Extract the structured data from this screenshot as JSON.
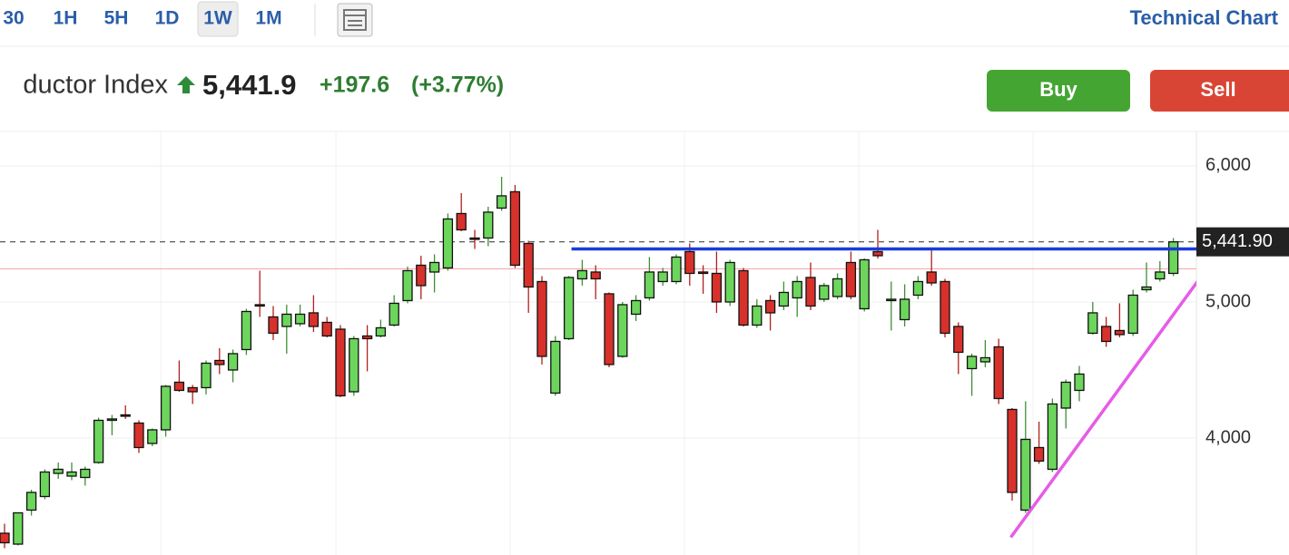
{
  "toolbar": {
    "intervals": [
      "30",
      "1H",
      "5H",
      "1D",
      "1W",
      "1M"
    ],
    "selected": 4,
    "link": "Technical Chart"
  },
  "quote": {
    "name": "ductor Index",
    "price": "5,441.9",
    "change": "+197.6",
    "change_pct": "(+3.77%)"
  },
  "actions": [
    "Buy",
    "Sell"
  ],
  "chart_data": {
    "type": "candlestick",
    "open": [
      3300,
      3220,
      3470,
      3570,
      3740,
      3720,
      3710,
      3820,
      4130,
      4170,
      4110,
      3960,
      4060,
      4410,
      4370,
      4370,
      4570,
      4500,
      4650,
      4980,
      4890,
      4820,
      4840,
      4920,
      4850,
      4800,
      4340,
      4750,
      4750,
      4830,
      5010,
      5270,
      5220,
      5250,
      5650,
      5470,
      5470,
      5690,
      5810,
      5430,
      5150,
      4330,
      4730,
      5170,
      5220,
      5060,
      4600,
      4910,
      5030,
      5150,
      5150,
      5370,
      5220,
      5210,
      5000,
      5230,
      4830,
      5010,
      4970,
      5030,
      5180,
      5020,
      5040,
      5290,
      4950,
      5370,
      5010,
      4870,
      5050,
      5220,
      5150,
      4820,
      4510,
      4560,
      4670,
      4210,
      3470,
      3930,
      3770,
      4220,
      4350,
      4770,
      4820,
      4790,
      4770,
      5090,
      5170,
      5210
    ],
    "high": [
      3370,
      3450,
      3620,
      3770,
      3820,
      3820,
      3790,
      4150,
      4170,
      4240,
      4130,
      4070,
      4390,
      4570,
      4390,
      4570,
      4660,
      4650,
      4950,
      5230,
      4970,
      4980,
      4980,
      5050,
      4890,
      4830,
      4750,
      4830,
      4870,
      5050,
      5260,
      5340,
      5350,
      5650,
      5800,
      5530,
      5700,
      5920,
      5860,
      5450,
      5190,
      4750,
      5190,
      5310,
      5270,
      5070,
      5000,
      5050,
      5330,
      5250,
      5350,
      5430,
      5270,
      5370,
      5310,
      5250,
      5020,
      5050,
      5150,
      5190,
      5290,
      5140,
      5210,
      5370,
      5320,
      5530,
      5150,
      5130,
      5190,
      5390,
      5170,
      4850,
      4620,
      4720,
      4730,
      4220,
      4270,
      4120,
      4290,
      4430,
      4530,
      5000,
      4890,
      4990,
      5090,
      5290,
      5300,
      5470
    ],
    "low": [
      3190,
      3210,
      3430,
      3550,
      3700,
      3690,
      3650,
      3810,
      4020,
      4140,
      3890,
      3940,
      4010,
      4340,
      4250,
      4320,
      4470,
      4410,
      4610,
      4890,
      4720,
      4620,
      4820,
      4780,
      4740,
      4300,
      4310,
      4490,
      4740,
      4820,
      4990,
      5020,
      5070,
      5230,
      5520,
      5390,
      5410,
      5670,
      5250,
      4920,
      4540,
      4310,
      4720,
      5120,
      5020,
      4520,
      4590,
      4860,
      5010,
      5120,
      5130,
      5120,
      5060,
      4920,
      4970,
      4820,
      4810,
      4790,
      4940,
      4890,
      4940,
      5000,
      5020,
      5020,
      4930,
      5320,
      4790,
      4820,
      5020,
      5120,
      4740,
      4470,
      4310,
      4520,
      4250,
      3540,
      3450,
      3810,
      3750,
      4070,
      4270,
      4760,
      4670,
      4740,
      4750,
      5070,
      5150,
      5190
    ],
    "close": [
      3230,
      3450,
      3600,
      3750,
      3770,
      3750,
      3770,
      4130,
      4140,
      4160,
      3930,
      4060,
      4380,
      4350,
      4340,
      4550,
      4540,
      4620,
      4930,
      4970,
      4770,
      4910,
      4910,
      4820,
      4750,
      4310,
      4730,
      4730,
      4810,
      4990,
      5230,
      5120,
      5290,
      5610,
      5530,
      5460,
      5660,
      5780,
      5270,
      5110,
      4600,
      4710,
      5180,
      5230,
      5170,
      4540,
      4980,
      5010,
      5220,
      5220,
      5330,
      5210,
      5210,
      5000,
      5290,
      4830,
      4970,
      4920,
      5070,
      5150,
      4970,
      5120,
      5170,
      5040,
      5310,
      5340,
      5020,
      5020,
      5150,
      5140,
      4770,
      4630,
      4600,
      4590,
      4290,
      3600,
      3990,
      3830,
      4250,
      4410,
      4470,
      4920,
      4710,
      4760,
      5050,
      5110,
      5220,
      5441.9
    ],
    "ylim": [
      3140,
      6253
    ],
    "yticks": [
      {
        "value": 4000,
        "label": "4,000"
      },
      {
        "value": 5000,
        "label": "5,000"
      },
      {
        "value": 6000,
        "label": "6,000"
      }
    ],
    "grid": true,
    "up_color": "#6cd65c",
    "down_color": "#d8312b",
    "last_price": {
      "value": 5441.9,
      "label": "5,441.90"
    },
    "prev_close": 5244.3,
    "trendlines": [
      {
        "color": "#1a3bdb",
        "x": [
          42.2,
          90.5
        ],
        "y": [
          5390,
          5390
        ]
      },
      {
        "color": "#e55ce6",
        "x": [
          74.9,
          90.2
        ],
        "y": [
          3270,
          5340
        ]
      }
    ]
  }
}
